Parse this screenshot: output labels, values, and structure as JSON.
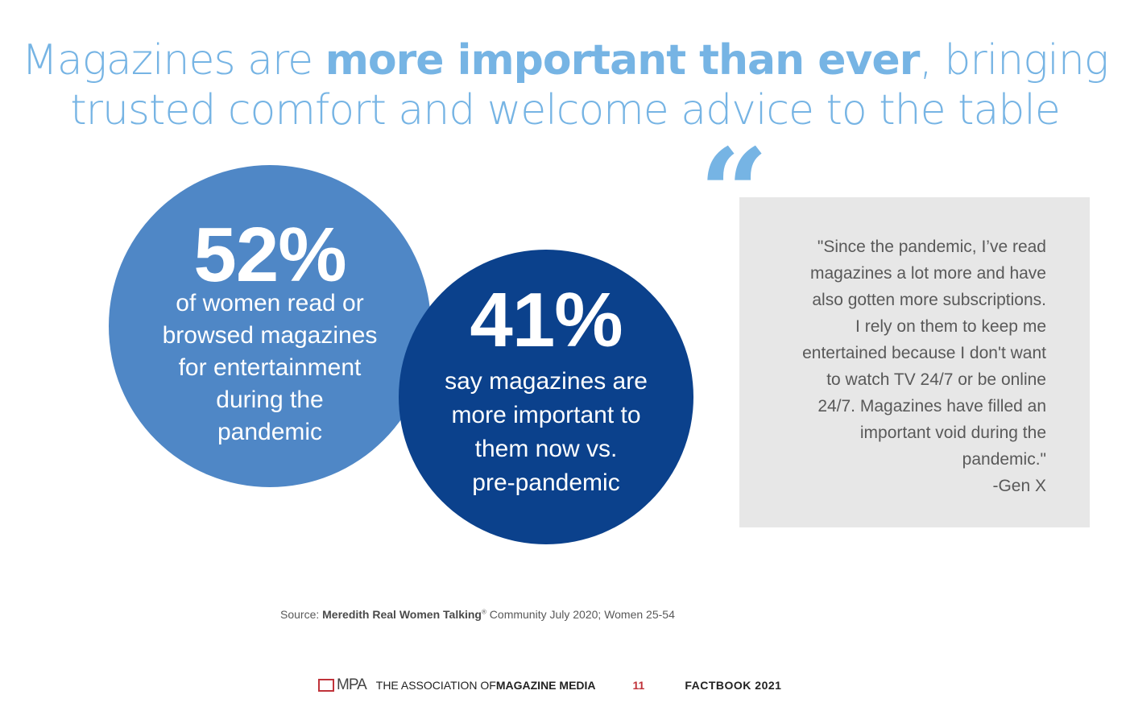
{
  "title": {
    "part1": "Magazines are ",
    "bold": "more important than ever",
    "part2": ", bringing",
    "line2": "trusted comfort and welcome advice to the table"
  },
  "stats": [
    {
      "value": "52%",
      "lines": [
        "of women read or",
        "browsed magazines",
        "for entertainment",
        "during the",
        "pandemic"
      ]
    },
    {
      "value": "41%",
      "lines": [
        "say magazines are",
        "more important to",
        "them now vs.",
        "pre-pandemic"
      ]
    }
  ],
  "quote": {
    "mark": "“",
    "lines": [
      "\"Since the pandemic, I’ve read",
      "magazines a lot more and have",
      "also gotten more subscriptions.",
      "I rely on them to keep me",
      "entertained because I don't want",
      "to watch TV 24/7 or be online",
      "24/7. Magazines have filled an",
      "important void during the",
      "pandemic.\"",
      "-Gen X"
    ]
  },
  "source": {
    "label": "Source: ",
    "bold": "Meredith Real Women Talking",
    "reg": "®",
    "rest": " Community July 2020; Women 25-54"
  },
  "footer": {
    "logo": "MPA",
    "org_prefix": "THE ASSOCIATION OF ",
    "org_bold": "MAGAZINE MEDIA",
    "page": "11",
    "book": "FACTBOOK 2021"
  },
  "colors": {
    "title": "#76b4e4",
    "circle1": "#4f87c6",
    "circle2": "#0b418c",
    "quote_bg": "#e7e7e7",
    "accent_red": "#c0333a"
  }
}
